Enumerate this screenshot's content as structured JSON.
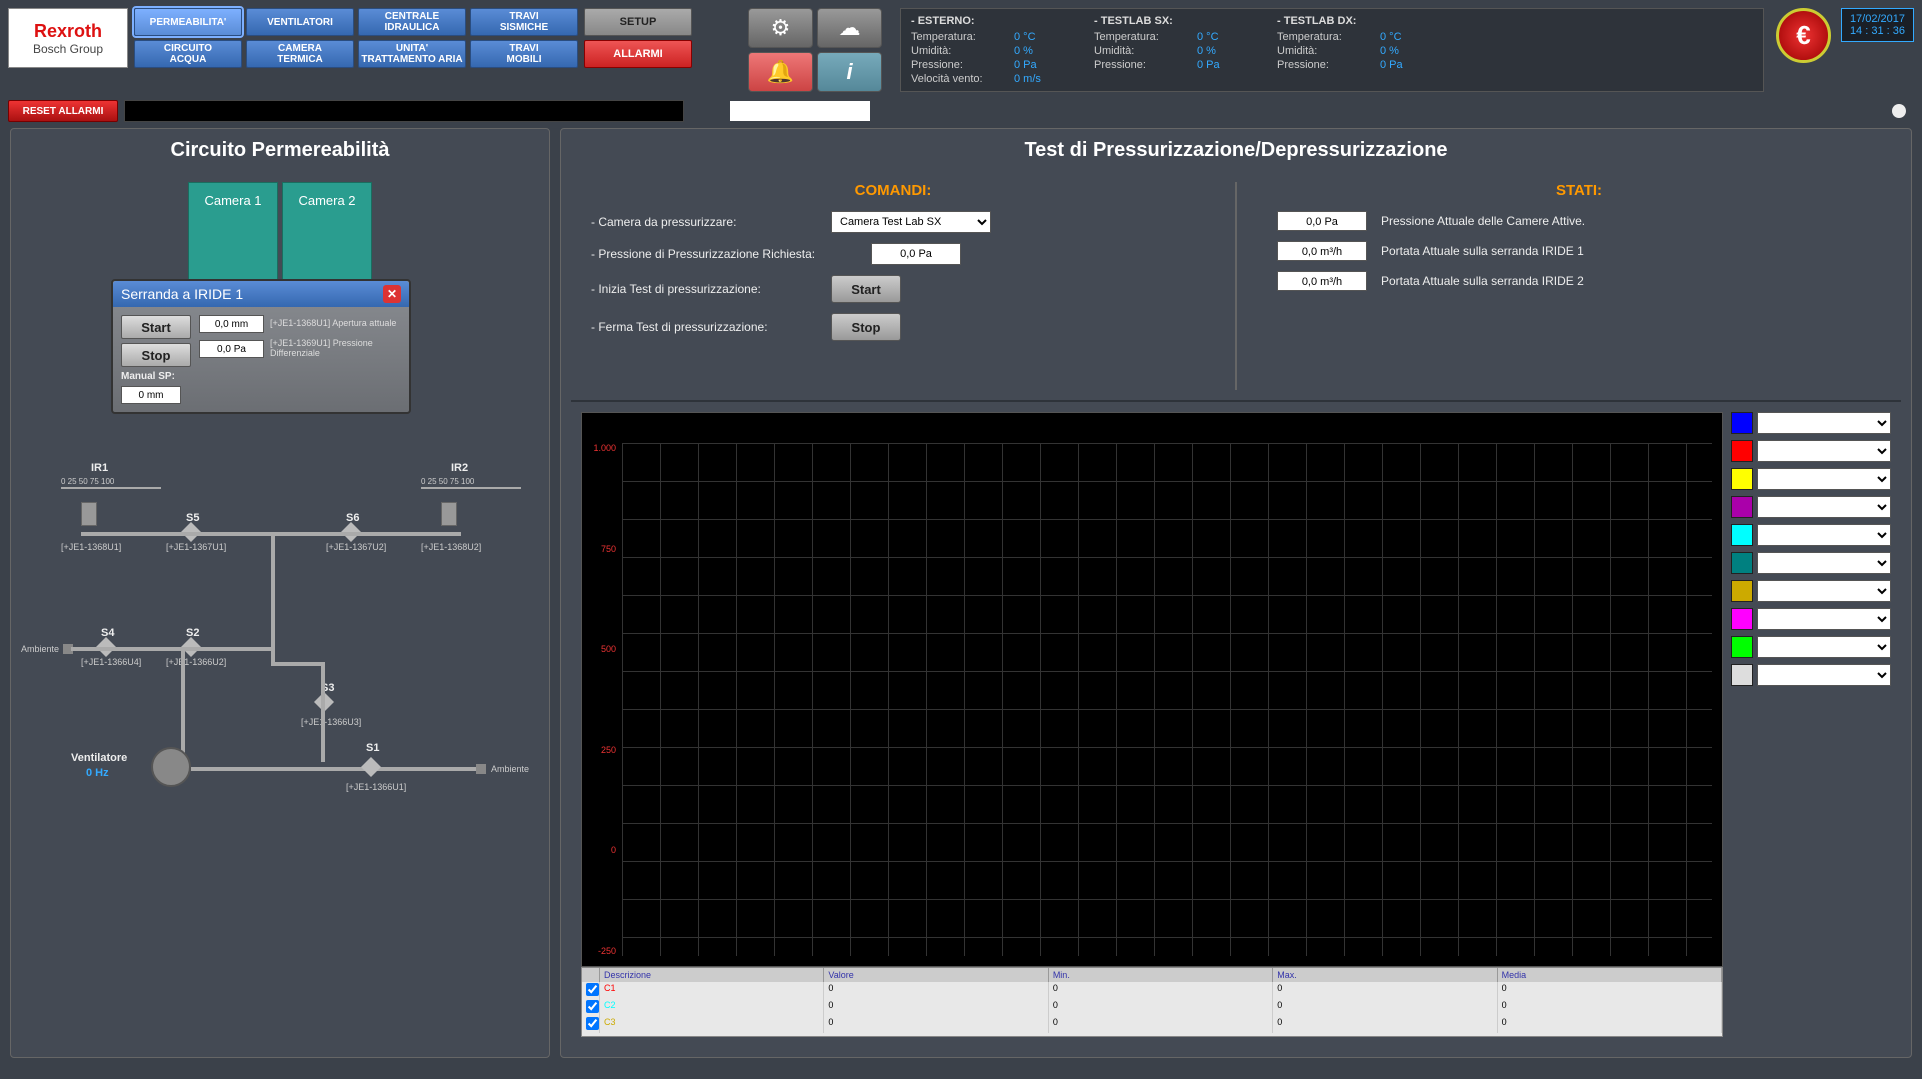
{
  "logo": {
    "line1": "Rexroth",
    "line2": "Bosch Group"
  },
  "nav": {
    "r1": [
      "PERMEABILITA'",
      "VENTILATORI",
      "CENTRALE\nIDRAULICA",
      "TRAVI\nSISMICHE"
    ],
    "r2": [
      "CIRCUITO\nACQUA",
      "CAMERA\nTERMICA",
      "UNITA'\nTRATTAMENTO ARIA",
      "TRAVI\nMOBILI"
    ]
  },
  "setup": "SETUP",
  "allarmi": "ALLARMI",
  "reset": "RESET ALLARMI",
  "status": {
    "esterno": {
      "hdr": "- ESTERNO:",
      "temp_l": "Temperatura:",
      "temp_v": "0 °C",
      "hum_l": "Umidità:",
      "hum_v": "0 %",
      "pres_l": "Pressione:",
      "pres_v": "0 Pa",
      "wind_l": "Velocità vento:",
      "wind_v": "0 m/s"
    },
    "sx": {
      "hdr": "- TESTLAB SX:",
      "temp_l": "Temperatura:",
      "temp_v": "0 °C",
      "hum_l": "Umidità:",
      "hum_v": "0 %",
      "pres_l": "Pressione:",
      "pres_v": "0 Pa"
    },
    "dx": {
      "hdr": "- TESTLAB DX:",
      "temp_l": "Temperatura:",
      "temp_v": "0 °C",
      "hum_l": "Umidità:",
      "hum_v": "0 %",
      "pres_l": "Pressione:",
      "pres_v": "0 Pa"
    }
  },
  "datetime": {
    "date": "17/02/2017",
    "time": "14 : 31 : 36"
  },
  "left": {
    "title": "Circuito Permereabilità",
    "cam1": "Camera 1",
    "cam2": "Camera 2",
    "ir1": "IR1",
    "ir2": "IR2",
    "scale": "0   25  50  75  100",
    "s1": "S1",
    "s2": "S2",
    "s3": "S3",
    "s4": "S4",
    "s5": "S5",
    "s6": "S6",
    "t_ir1": "[+JE1-1368U1]",
    "t_ir2": "[+JE1-1368U2]",
    "t_s5": "[+JE1-1367U1]",
    "t_s6": "[+JE1-1367U2]",
    "t_s4": "[+JE1-1366U4]",
    "t_s2": "[+JE1-1366U2]",
    "t_s3": "[+JE1-1366U3]",
    "t_s1": "[+JE1-1366U1]",
    "vent": "Ventilatore",
    "vent_hz": "0 Hz",
    "amb": "Ambiente"
  },
  "popup": {
    "title": "Serranda a IRIDE 1",
    "start": "Start",
    "stop": "Stop",
    "manual": "Manual SP:",
    "manual_v": "0 mm",
    "v1": "0,0 mm",
    "d1": "[+JE1-1368U1] Apertura attuale",
    "v2": "0,0 Pa",
    "d2": "[+JE1-1369U1] Pressione Differenziale"
  },
  "right": {
    "title": "Test di Pressurizzazione/Depressurizzazione",
    "comandi": "COMANDI:",
    "stati": "STATI:",
    "c1": "Camera da pressurizzare:",
    "c1v": "Camera Test Lab SX",
    "c2": "Pressione di Pressurizzazione Richiesta:",
    "c2v": "0,0 Pa",
    "c3": "Inizia Test di pressurizzazione:",
    "c3b": "Start",
    "c4": "Ferma Test di pressurizzazione:",
    "c4b": "Stop",
    "s1v": "0,0 Pa",
    "s1l": "Pressione Attuale delle Camere Attive.",
    "s2v": "0,0 m³/h",
    "s2l": "Portata Attuale sulla serranda IRIDE  1",
    "s3v": "0,0 m³/h",
    "s3l": "Portata Attuale sulla serranda IRIDE  2"
  },
  "chart": {
    "yticks": [
      "1.000",
      "750",
      "500",
      "250",
      "0",
      "-250"
    ],
    "colors": [
      "#0000ff",
      "#ff0000",
      "#ffff00",
      "#aa00aa",
      "#00ffff",
      "#008080",
      "#ccaa00",
      "#ff00ff",
      "#00ff00",
      "#dddddd"
    ],
    "table": {
      "head": [
        "Descrizione",
        "Valore",
        "Min.",
        "Max.",
        "Media"
      ],
      "rows": [
        {
          "c": "#ff0000",
          "cells": [
            "C1",
            "0",
            "0",
            "0",
            "0"
          ]
        },
        {
          "c": "#00ffff",
          "cells": [
            "C2",
            "0",
            "0",
            "0",
            "0"
          ]
        },
        {
          "c": "#ccaa00",
          "cells": [
            "C3",
            "0",
            "0",
            "0",
            "0"
          ]
        }
      ]
    }
  }
}
